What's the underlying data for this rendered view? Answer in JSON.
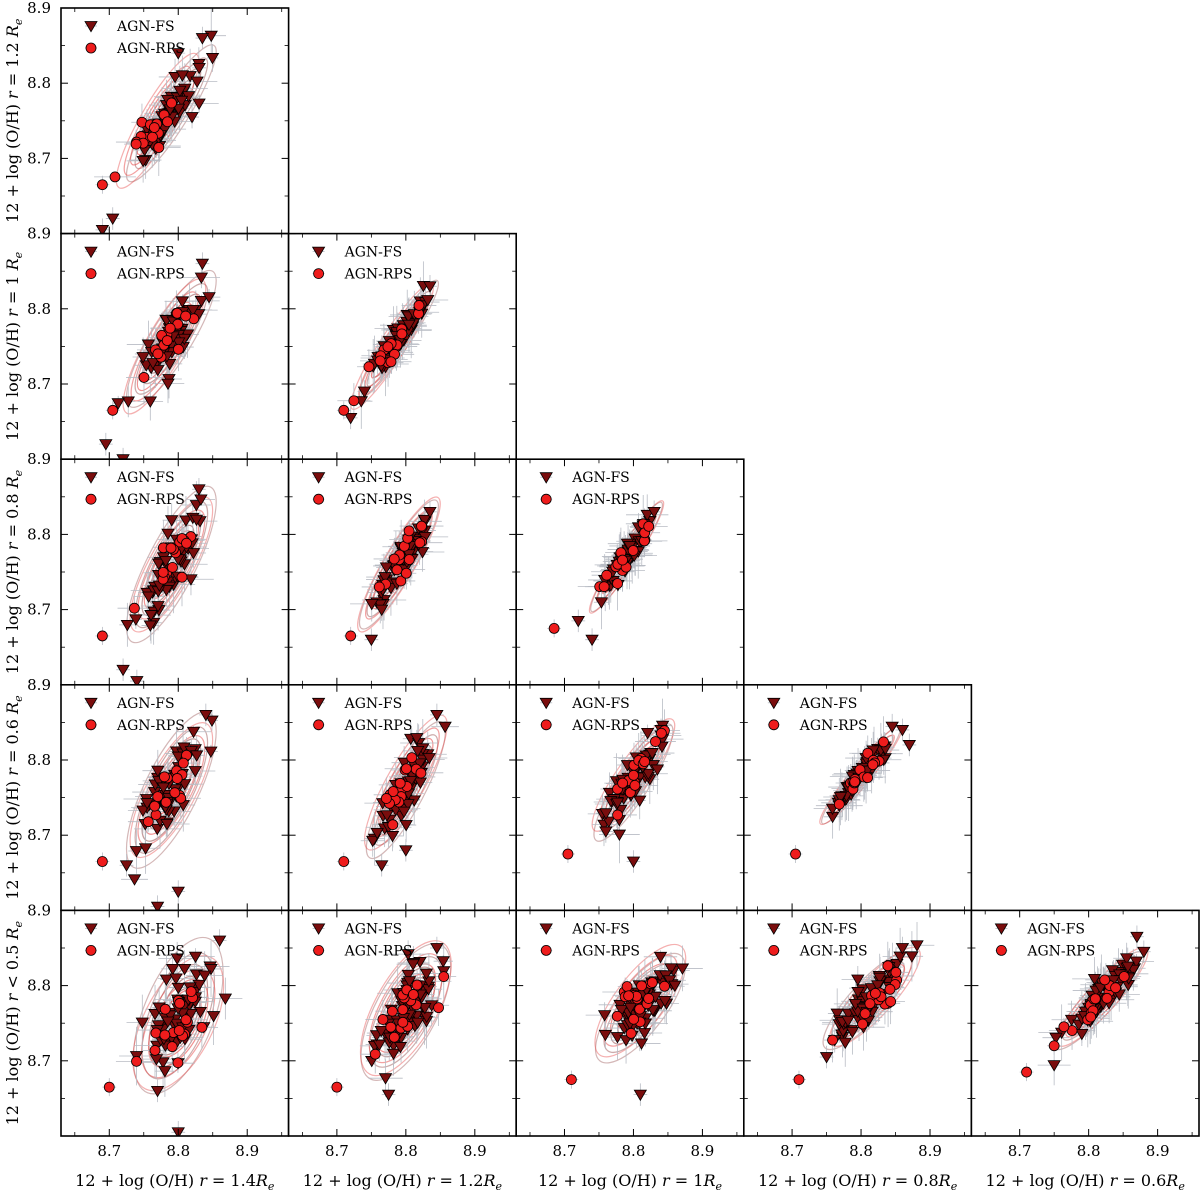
{
  "chart_data": {
    "type": "scatter",
    "title": "",
    "description_rows": [
      "r = 1.2 Re",
      "r = 1 Re",
      "r = 0.8 Re",
      "r = 0.6 Re",
      "r < 0.5 Re"
    ],
    "ylabels": [
      "12 + log (O/H) r = 1.2 Re",
      "12 + log (O/H) r = 1 Re",
      "12 + log (O/H) r = 0.8 Re",
      "12 + log (O/H) r = 0.6 Re",
      "12 + log (O/H) r < 0.5 Re"
    ],
    "ylabel_prefix": "12 + log (O/H)",
    "row_suffix": [
      {
        "rel": "=",
        "val": "1.2"
      },
      {
        "rel": "=",
        "val": "1"
      },
      {
        "rel": "=",
        "val": "0.8"
      },
      {
        "rel": "=",
        "val": "0.6"
      },
      {
        "rel": "<",
        "val": "0.5"
      }
    ],
    "xlabels": [
      "12 + log (O/H) r = 1.4Re",
      "12 + log (O/H) r = 1.2Re",
      "12 + log (O/H) r = 1Re",
      "12 + log (O/H) r = 0.8Re",
      "12 + log (O/H) r = 0.6Re"
    ],
    "xlabel_prefix": "12 + log (O/H)",
    "col_suffix": [
      "1.4",
      "1.2",
      "1",
      "0.8",
      "0.6"
    ],
    "xlim": [
      8.63,
      8.96
    ],
    "ylim": [
      8.6,
      8.9
    ],
    "xticks": [
      "8.7",
      "8.8",
      "8.9"
    ],
    "yticks": [
      "8.7",
      "8.8",
      "8.9"
    ],
    "legend": [
      "AGN-FS",
      "AGN-RPS"
    ],
    "legend_loc": "upper-left",
    "colors": {
      "fs_fill": "#7a0d0d",
      "rps_fill": "#ee1c1c",
      "contour_fs": "#a06060",
      "contour_rps": "#e85050",
      "errorbar": "#b8bcc4",
      "axes": "#000000"
    },
    "panels": [
      {
        "row": 0,
        "col": 0,
        "fs": {
          "cx": 8.79,
          "cy": 8.76,
          "sx": 0.025,
          "sy": 0.035,
          "rho": 0.9,
          "n": 55,
          "seed": 11
        },
        "rps": {
          "cx": 8.77,
          "cy": 8.75,
          "sx": 0.02,
          "sy": 0.03,
          "rho": 0.88,
          "n": 16,
          "seed": 12
        },
        "fs_pts": [
          [
            8.705,
            8.62
          ],
          [
            8.69,
            8.605
          ],
          [
            8.835,
            8.86
          ],
          [
            8.82,
            8.755
          ],
          [
            8.8,
            8.84
          ]
        ],
        "rps_pts": [
          [
            8.69,
            8.665
          ]
        ]
      },
      {
        "row": 1,
        "col": 0,
        "fs": {
          "cx": 8.79,
          "cy": 8.76,
          "sx": 0.025,
          "sy": 0.035,
          "rho": 0.85,
          "n": 55,
          "seed": 21
        },
        "rps": {
          "cx": 8.78,
          "cy": 8.75,
          "sx": 0.02,
          "sy": 0.03,
          "rho": 0.85,
          "n": 16,
          "seed": 22
        },
        "fs_pts": [
          [
            8.695,
            8.62
          ],
          [
            8.72,
            8.6
          ],
          [
            8.835,
            8.86
          ]
        ],
        "rps_pts": [
          [
            8.705,
            8.665
          ]
        ]
      },
      {
        "row": 1,
        "col": 1,
        "fs": {
          "cx": 8.79,
          "cy": 8.76,
          "sx": 0.022,
          "sy": 0.03,
          "rho": 0.94,
          "n": 55,
          "seed": 31
        },
        "rps": {
          "cx": 8.78,
          "cy": 8.75,
          "sx": 0.02,
          "sy": 0.028,
          "rho": 0.93,
          "n": 16,
          "seed": 32
        },
        "fs_pts": [
          [
            8.72,
            8.655
          ],
          [
            8.74,
            8.69
          ],
          [
            8.835,
            8.83
          ]
        ],
        "rps_pts": [
          [
            8.71,
            8.665
          ]
        ]
      },
      {
        "row": 2,
        "col": 0,
        "fs": {
          "cx": 8.79,
          "cy": 8.76,
          "sx": 0.025,
          "sy": 0.04,
          "rho": 0.8,
          "n": 55,
          "seed": 41
        },
        "rps": {
          "cx": 8.79,
          "cy": 8.76,
          "sx": 0.02,
          "sy": 0.03,
          "rho": 0.8,
          "n": 16,
          "seed": 42
        },
        "fs_pts": [
          [
            8.72,
            8.62
          ],
          [
            8.74,
            8.605
          ],
          [
            8.83,
            8.86
          ]
        ],
        "rps_pts": [
          [
            8.69,
            8.665
          ]
        ]
      },
      {
        "row": 2,
        "col": 1,
        "fs": {
          "cx": 8.79,
          "cy": 8.76,
          "sx": 0.022,
          "sy": 0.033,
          "rho": 0.9,
          "n": 55,
          "seed": 51
        },
        "rps": {
          "cx": 8.79,
          "cy": 8.76,
          "sx": 0.02,
          "sy": 0.03,
          "rho": 0.9,
          "n": 16,
          "seed": 52
        },
        "fs_pts": [
          [
            8.75,
            8.66
          ],
          [
            8.765,
            8.7
          ],
          [
            8.835,
            8.83
          ]
        ],
        "rps_pts": [
          [
            8.72,
            8.665
          ]
        ]
      },
      {
        "row": 2,
        "col": 2,
        "fs": {
          "cx": 8.79,
          "cy": 8.77,
          "sx": 0.02,
          "sy": 0.028,
          "rho": 0.95,
          "n": 55,
          "seed": 61
        },
        "rps": {
          "cx": 8.79,
          "cy": 8.77,
          "sx": 0.018,
          "sy": 0.025,
          "rho": 0.95,
          "n": 16,
          "seed": 62
        },
        "fs_pts": [
          [
            8.72,
            8.685
          ],
          [
            8.74,
            8.66
          ],
          [
            8.83,
            8.83
          ]
        ],
        "rps_pts": [
          [
            8.685,
            8.675
          ]
        ]
      },
      {
        "row": 3,
        "col": 0,
        "fs": {
          "cx": 8.79,
          "cy": 8.76,
          "sx": 0.025,
          "sy": 0.04,
          "rho": 0.75,
          "n": 60,
          "seed": 71
        },
        "rps": {
          "cx": 8.79,
          "cy": 8.76,
          "sx": 0.02,
          "sy": 0.03,
          "rho": 0.75,
          "n": 16,
          "seed": 72
        },
        "fs_pts": [
          [
            8.725,
            8.66
          ],
          [
            8.77,
            8.605
          ],
          [
            8.84,
            8.86
          ],
          [
            8.8,
            8.625
          ]
        ],
        "rps_pts": [
          [
            8.69,
            8.665
          ]
        ]
      },
      {
        "row": 3,
        "col": 1,
        "fs": {
          "cx": 8.8,
          "cy": 8.76,
          "sx": 0.022,
          "sy": 0.035,
          "rho": 0.85,
          "n": 60,
          "seed": 81
        },
        "rps": {
          "cx": 8.8,
          "cy": 8.77,
          "sx": 0.02,
          "sy": 0.03,
          "rho": 0.85,
          "n": 16,
          "seed": 82
        },
        "fs_pts": [
          [
            8.765,
            8.66
          ],
          [
            8.8,
            8.68
          ],
          [
            8.845,
            8.86
          ]
        ],
        "rps_pts": [
          [
            8.71,
            8.665
          ]
        ]
      },
      {
        "row": 3,
        "col": 2,
        "fs": {
          "cx": 8.8,
          "cy": 8.77,
          "sx": 0.022,
          "sy": 0.03,
          "rho": 0.88,
          "n": 60,
          "seed": 91
        },
        "rps": {
          "cx": 8.8,
          "cy": 8.78,
          "sx": 0.02,
          "sy": 0.025,
          "rho": 0.88,
          "n": 16,
          "seed": 92
        },
        "fs_pts": [
          [
            8.8,
            8.665
          ],
          [
            8.76,
            8.705
          ],
          [
            8.84,
            8.84
          ]
        ],
        "rps_pts": [
          [
            8.705,
            8.675
          ]
        ]
      },
      {
        "row": 3,
        "col": 3,
        "fs": {
          "cx": 8.8,
          "cy": 8.78,
          "sx": 0.022,
          "sy": 0.025,
          "rho": 0.95,
          "n": 60,
          "seed": 101
        },
        "rps": {
          "cx": 8.8,
          "cy": 8.78,
          "sx": 0.02,
          "sy": 0.022,
          "rho": 0.95,
          "n": 16,
          "seed": 102
        },
        "fs_pts": [
          [
            8.86,
            8.84
          ],
          [
            8.87,
            8.82
          ]
        ],
        "rps_pts": [
          [
            8.705,
            8.675
          ]
        ]
      },
      {
        "row": 4,
        "col": 0,
        "fs": {
          "cx": 8.8,
          "cy": 8.76,
          "sx": 0.025,
          "sy": 0.04,
          "rho": 0.55,
          "n": 70,
          "seed": 111
        },
        "rps": {
          "cx": 8.8,
          "cy": 8.75,
          "sx": 0.022,
          "sy": 0.03,
          "rho": 0.55,
          "n": 18,
          "seed": 112
        },
        "fs_pts": [
          [
            8.77,
            8.66
          ],
          [
            8.8,
            8.605
          ],
          [
            8.86,
            8.86
          ]
        ],
        "rps_pts": [
          [
            8.7,
            8.665
          ]
        ]
      },
      {
        "row": 4,
        "col": 1,
        "fs": {
          "cx": 8.8,
          "cy": 8.765,
          "sx": 0.025,
          "sy": 0.035,
          "rho": 0.65,
          "n": 70,
          "seed": 121
        },
        "rps": {
          "cx": 8.8,
          "cy": 8.77,
          "sx": 0.022,
          "sy": 0.03,
          "rho": 0.65,
          "n": 18,
          "seed": 122
        },
        "fs_pts": [
          [
            8.775,
            8.655
          ],
          [
            8.845,
            8.85
          ]
        ],
        "rps_pts": [
          [
            8.7,
            8.665
          ]
        ]
      },
      {
        "row": 4,
        "col": 2,
        "fs": {
          "cx": 8.81,
          "cy": 8.77,
          "sx": 0.025,
          "sy": 0.028,
          "rho": 0.75,
          "n": 70,
          "seed": 131
        },
        "rps": {
          "cx": 8.81,
          "cy": 8.78,
          "sx": 0.022,
          "sy": 0.025,
          "rho": 0.75,
          "n": 18,
          "seed": 132
        },
        "fs_pts": [
          [
            8.81,
            8.655
          ],
          [
            8.86,
            8.8
          ]
        ],
        "rps_pts": [
          [
            8.71,
            8.675
          ]
        ]
      },
      {
        "row": 4,
        "col": 3,
        "fs": {
          "cx": 8.81,
          "cy": 8.78,
          "sx": 0.025,
          "sy": 0.025,
          "rho": 0.85,
          "n": 70,
          "seed": 141
        },
        "rps": {
          "cx": 8.82,
          "cy": 8.785,
          "sx": 0.022,
          "sy": 0.022,
          "rho": 0.85,
          "n": 18,
          "seed": 142
        },
        "fs_pts": [
          [
            8.86,
            8.85
          ],
          [
            8.75,
            8.705
          ]
        ],
        "rps_pts": [
          [
            8.71,
            8.675
          ]
        ]
      },
      {
        "row": 4,
        "col": 4,
        "fs": {
          "cx": 8.815,
          "cy": 8.78,
          "sx": 0.025,
          "sy": 0.025,
          "rho": 0.9,
          "n": 70,
          "seed": 151
        },
        "rps": {
          "cx": 8.82,
          "cy": 8.785,
          "sx": 0.022,
          "sy": 0.022,
          "rho": 0.9,
          "n": 18,
          "seed": 152
        },
        "fs_pts": [
          [
            8.87,
            8.865
          ],
          [
            8.88,
            8.845
          ]
        ],
        "rps_pts": [
          [
            8.71,
            8.685
          ],
          [
            8.75,
            8.72
          ]
        ]
      }
    ]
  }
}
